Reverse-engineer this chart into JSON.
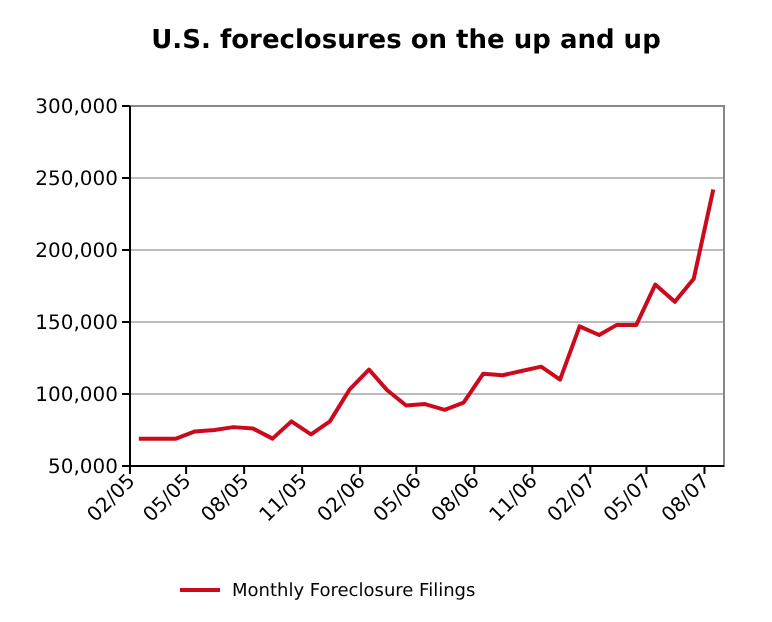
{
  "chart_data": {
    "type": "line",
    "title": "U.S. foreclosures on the up and up",
    "x": [
      "2005-02-15",
      "2005-03-15",
      "2005-04-15",
      "2005-05-15",
      "2005-06-15",
      "2005-07-15",
      "2005-08-15",
      "2005-09-15",
      "2005-10-15",
      "2005-11-15",
      "2005-12-15",
      "2006-01-15",
      "2006-02-15",
      "2006-03-15",
      "2006-04-15",
      "2006-05-15",
      "2006-06-15",
      "2006-07-15",
      "2006-08-15",
      "2006-09-15",
      "2006-10-15",
      "2006-11-15",
      "2006-12-15",
      "2007-01-15",
      "2007-02-15",
      "2007-03-15",
      "2007-04-15",
      "2007-05-15",
      "2007-06-15",
      "2007-07-15",
      "2007-08-15"
    ],
    "series": [
      {
        "name": "Monthly Foreclosure Filings",
        "color": "#cc0a1e",
        "values": [
          69000,
          69000,
          69000,
          74000,
          75000,
          77000,
          76000,
          69000,
          81000,
          72000,
          81000,
          103000,
          117000,
          103000,
          92000,
          93000,
          89000,
          94000,
          114000,
          113000,
          116000,
          119000,
          110000,
          147000,
          141000,
          148000,
          148000,
          176000,
          164000,
          180000,
          242000
        ]
      }
    ],
    "xlim": [
      "2005-02",
      "2007-09"
    ],
    "xticks": [
      {
        "value": "2005-02",
        "label": "02/05"
      },
      {
        "value": "2005-05",
        "label": "05/05"
      },
      {
        "value": "2005-08",
        "label": "08/05"
      },
      {
        "value": "2005-11",
        "label": "11/05"
      },
      {
        "value": "2006-02",
        "label": "02/06"
      },
      {
        "value": "2006-05",
        "label": "05/06"
      },
      {
        "value": "2006-08",
        "label": "08/06"
      },
      {
        "value": "2006-11",
        "label": "11/06"
      },
      {
        "value": "2007-02",
        "label": "02/07"
      },
      {
        "value": "2007-05",
        "label": "05/07"
      },
      {
        "value": "2007-08",
        "label": "08/07"
      }
    ],
    "ylim": [
      50000,
      300000
    ],
    "yticks": [
      {
        "value": 50000,
        "label": "50,000"
      },
      {
        "value": 100000,
        "label": "100,000"
      },
      {
        "value": 150000,
        "label": "150,000"
      },
      {
        "value": 200000,
        "label": "200,000"
      },
      {
        "value": 250000,
        "label": "250,000"
      },
      {
        "value": 300000,
        "label": "300,000"
      }
    ],
    "grid": "y",
    "legend": "bottom",
    "marker": "none",
    "line_style": "solid"
  }
}
